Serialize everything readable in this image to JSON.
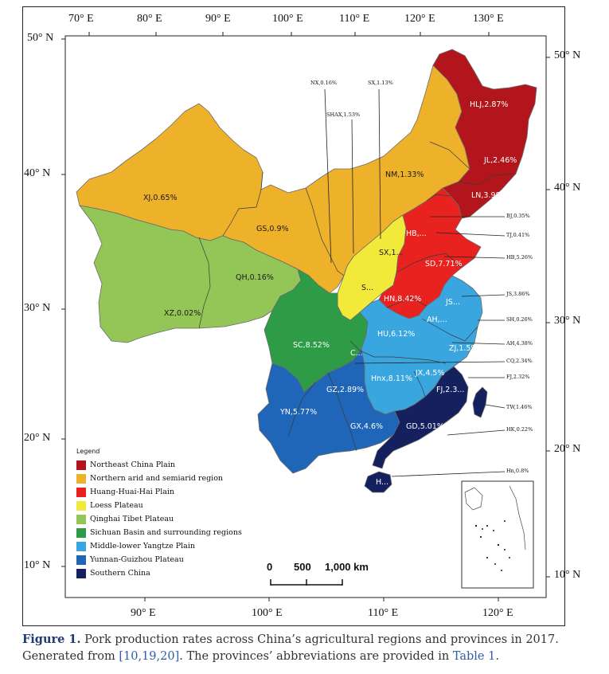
{
  "ticks": {
    "top": [
      "70° E",
      "80° E",
      "90° E",
      "100° E",
      "110° E",
      "120° E",
      "130° E"
    ],
    "bottom": [
      "90° E",
      "100° E",
      "110° E",
      "120° E"
    ],
    "left": [
      "50° N",
      "40° N",
      "30° N",
      "20° N",
      "10° N"
    ],
    "right": [
      "50° N",
      "40° N",
      "30° N",
      "20° N",
      "10° N"
    ]
  },
  "provinces": [
    {
      "label": "XJ,0.65%"
    },
    {
      "label": "XZ,0.02%"
    },
    {
      "label": "QH,0.16%"
    },
    {
      "label": "GS,0.9%"
    },
    {
      "label": "NM,1.33%"
    },
    {
      "label": "HLJ,2.87%"
    },
    {
      "label": "JL,2.46%"
    },
    {
      "label": "LN,3.98%"
    },
    {
      "label": "SC,8.52%"
    },
    {
      "label": "YN,5.77%"
    },
    {
      "label": "GZ,2.89%"
    },
    {
      "label": "GX,4.6%"
    },
    {
      "label": "GD,5.01%"
    },
    {
      "label": "FJ,2.3..."
    },
    {
      "label": "Hnx,8.11%"
    },
    {
      "label": "JX,4.5%"
    },
    {
      "label": "ZJ,1.5%"
    },
    {
      "label": "HU,6.12%"
    },
    {
      "label": "AH,..."
    },
    {
      "label": "JS..."
    },
    {
      "label": "HN,8.42%"
    },
    {
      "label": "SD,7.71%"
    },
    {
      "label": "HB,..."
    },
    {
      "label": "SX,1..."
    },
    {
      "label": "S..."
    },
    {
      "label": "C..."
    },
    {
      "label": "H..."
    }
  ],
  "callouts": [
    {
      "label": "NX,0.16%"
    },
    {
      "label": "SX,1.13%"
    },
    {
      "label": "SHAX,1.53%"
    },
    {
      "label": "BJ,0.35%"
    },
    {
      "label": "TJ,0.41%"
    },
    {
      "label": "HB,5.26%"
    },
    {
      "label": "JS,3.86%"
    },
    {
      "label": "SH,0.26%"
    },
    {
      "label": "AH,4.38%"
    },
    {
      "label": "CQ,2.34%"
    },
    {
      "label": "FJ,2.32%"
    },
    {
      "label": "TW,1.46%"
    },
    {
      "label": "HK,0.22%"
    },
    {
      "label": "Hn,0.8%"
    }
  ],
  "legend": {
    "title": "Legend",
    "items": [
      {
        "label": "Northeast China Plain",
        "color": "#b3151d"
      },
      {
        "label": "Northern arid and semiarid region",
        "color": "#edb12a"
      },
      {
        "label": "Huang-Huai-Hai Plain",
        "color": "#e8231f"
      },
      {
        "label": "Loess Plateau",
        "color": "#f2ea3a"
      },
      {
        "label": "Qinghai Tibet Plateau",
        "color": "#93c657"
      },
      {
        "label": "Sichuan Basin and surrounding regions",
        "color": "#2e9b47"
      },
      {
        "label": "Middle-lower Yangtze Plain",
        "color": "#3aa6e0"
      },
      {
        "label": "Yunnan-Guizhou Plateau",
        "color": "#1f65b8"
      },
      {
        "label": "Southern China",
        "color": "#15205e"
      }
    ]
  },
  "scale_bar": {
    "labels": [
      "0",
      "500",
      "1,000 km"
    ]
  },
  "caption": {
    "figure_label": "Figure 1.",
    "text_a": " Pork production rates across China’s agricultural regions and provinces in 2017. Generated from ",
    "refs": "[10,19,20]",
    "text_b": ". The provinces’ abbreviations are provided in ",
    "table_ref": "Table 1",
    "text_c": "."
  }
}
